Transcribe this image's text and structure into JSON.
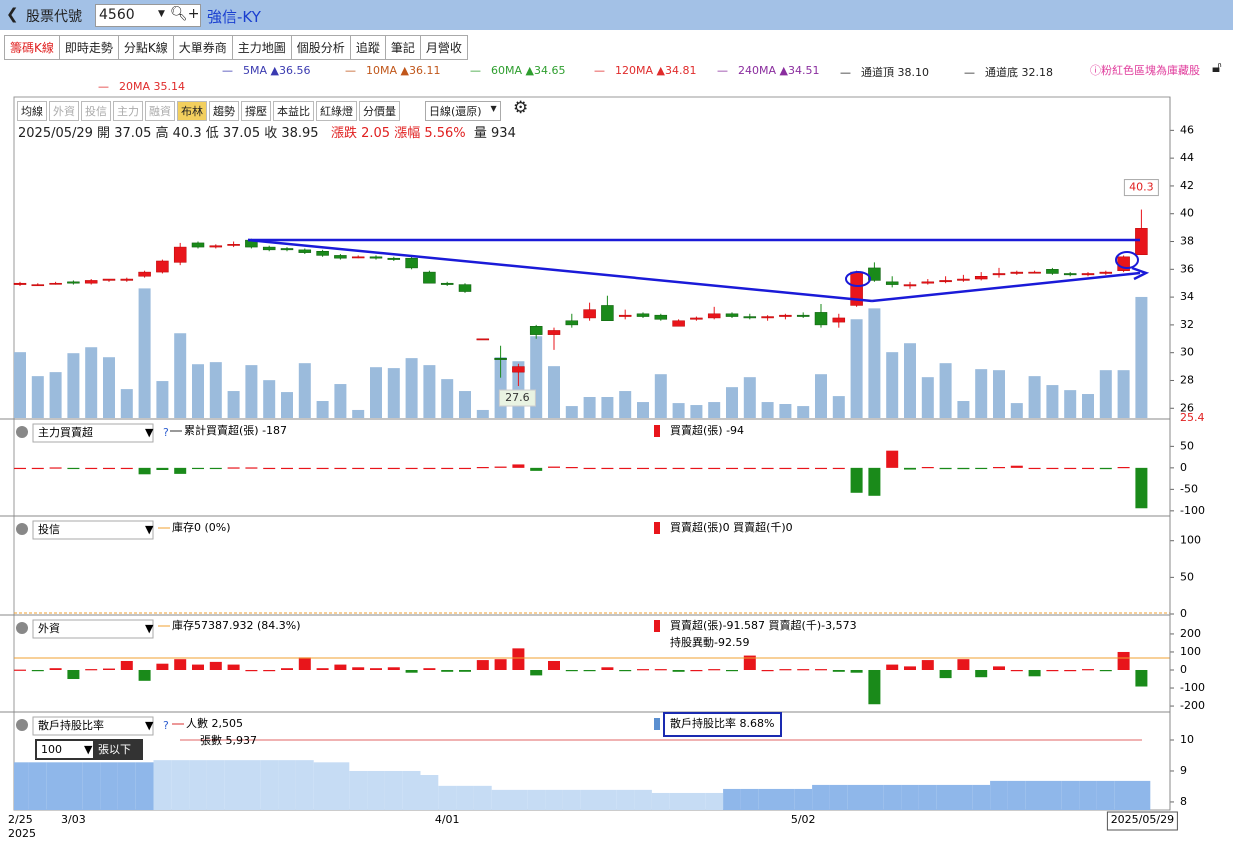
{
  "header": {
    "back_label": "股票代號",
    "code": "4560",
    "name": "強信-KY"
  },
  "tabs": [
    "籌碼K線",
    "即時走勢",
    "分點K線",
    "大單券商",
    "主力地圖",
    "個股分析",
    "追蹤",
    "筆記",
    "月營收"
  ],
  "ma_legend": [
    {
      "text": "5MA ▲36.56",
      "color": "#3a3ab0"
    },
    {
      "text": "10MA ▲36.11",
      "color": "#c0561a"
    },
    {
      "text": "60MA ▲34.65",
      "color": "#2e9e2e"
    },
    {
      "text": "120MA ▲34.81",
      "color": "#e02b2b"
    },
    {
      "text": "240MA ▲34.51",
      "color": "#8a2d9e"
    },
    {
      "text": "通道頂 38.10",
      "color": "#222222"
    },
    {
      "text": "通道底 32.18",
      "color": "#222222"
    },
    {
      "text": "20MA 35.14",
      "color": "#e02b2b"
    }
  ],
  "notice": "ⓘ粉紅色區塊為庫藏股",
  "toolbar": [
    "均線",
    "外資",
    "投信",
    "主力",
    "融資",
    "布林",
    "趨勢",
    "撐壓",
    "本益比",
    "紅綠燈",
    "分價量"
  ],
  "period": "日線(還原)",
  "info": {
    "black": "2025/05/29 開 37.05  高 40.3  低 37.05  收 38.95",
    "red": "漲跌 2.05  漲幅 5.56%",
    "volume": "量 934"
  },
  "main_chart": {
    "ylim": [
      25.3,
      48.4
    ],
    "yticks": [
      26,
      28,
      30,
      32,
      34,
      36,
      38,
      40,
      42,
      44,
      46
    ],
    "bottom_label": "25.4",
    "ohlc": [
      [
        34.9,
        35.1,
        34.8,
        35.0
      ],
      [
        34.9,
        35.0,
        34.8,
        34.9
      ],
      [
        35.0,
        35.1,
        34.9,
        35.0
      ],
      [
        35.1,
        35.2,
        34.9,
        35.0
      ],
      [
        35.0,
        35.3,
        34.9,
        35.2
      ],
      [
        35.2,
        35.3,
        35.1,
        35.3
      ],
      [
        35.2,
        35.4,
        35.1,
        35.3
      ],
      [
        35.5,
        35.9,
        35.4,
        35.8
      ],
      [
        35.8,
        36.7,
        35.7,
        36.6
      ],
      [
        36.5,
        37.9,
        36.3,
        37.6
      ],
      [
        37.9,
        38.0,
        37.5,
        37.6
      ],
      [
        37.6,
        37.8,
        37.5,
        37.7
      ],
      [
        37.8,
        38.0,
        37.6,
        37.8
      ],
      [
        38.1,
        38.2,
        37.5,
        37.6
      ],
      [
        37.6,
        37.7,
        37.3,
        37.4
      ],
      [
        37.5,
        37.6,
        37.3,
        37.4
      ],
      [
        37.4,
        37.5,
        37.1,
        37.2
      ],
      [
        37.3,
        37.4,
        36.9,
        37.0
      ],
      [
        37.0,
        37.1,
        36.7,
        36.8
      ],
      [
        36.9,
        37.0,
        36.8,
        36.9
      ],
      [
        36.9,
        37.0,
        36.7,
        36.8
      ],
      [
        36.8,
        36.9,
        36.6,
        36.7
      ],
      [
        36.8,
        37.0,
        36.0,
        36.1
      ],
      [
        35.8,
        35.9,
        35.0,
        35.0
      ],
      [
        35.0,
        35.1,
        34.8,
        34.9
      ],
      [
        34.9,
        35.0,
        34.3,
        34.4
      ],
      [
        31.0,
        31.0,
        31.0,
        31.0
      ],
      [
        29.6,
        30.5,
        28.2,
        29.5
      ],
      [
        28.6,
        29.2,
        27.6,
        29.0
      ],
      [
        31.9,
        32.0,
        31.0,
        31.3
      ],
      [
        31.3,
        31.8,
        30.2,
        31.6
      ],
      [
        32.3,
        32.8,
        31.8,
        32.0
      ],
      [
        32.5,
        33.6,
        32.3,
        33.1
      ],
      [
        33.4,
        34.1,
        32.3,
        32.3
      ],
      [
        32.6,
        33.1,
        32.4,
        32.7
      ],
      [
        32.8,
        32.9,
        32.5,
        32.6
      ],
      [
        32.7,
        32.8,
        32.3,
        32.4
      ],
      [
        31.9,
        32.4,
        31.9,
        32.3
      ],
      [
        32.4,
        32.6,
        32.3,
        32.5
      ],
      [
        32.5,
        33.3,
        32.4,
        32.8
      ],
      [
        32.8,
        32.9,
        32.5,
        32.6
      ],
      [
        32.6,
        32.8,
        32.4,
        32.5
      ],
      [
        32.5,
        32.7,
        32.3,
        32.6
      ],
      [
        32.6,
        32.8,
        32.4,
        32.7
      ],
      [
        32.7,
        32.9,
        32.5,
        32.6
      ],
      [
        32.9,
        33.5,
        31.8,
        32.0
      ],
      [
        32.2,
        32.8,
        31.8,
        32.5
      ],
      [
        33.4,
        35.9,
        33.3,
        35.8
      ],
      [
        36.1,
        36.5,
        35.1,
        35.2
      ],
      [
        35.1,
        35.5,
        34.7,
        34.9
      ],
      [
        34.8,
        35.1,
        34.6,
        34.9
      ],
      [
        35.0,
        35.3,
        34.9,
        35.1
      ],
      [
        35.1,
        35.5,
        35.0,
        35.2
      ],
      [
        35.2,
        35.6,
        35.1,
        35.3
      ],
      [
        35.3,
        35.8,
        35.2,
        35.5
      ],
      [
        35.6,
        36.1,
        35.4,
        35.7
      ],
      [
        35.7,
        35.9,
        35.6,
        35.8
      ],
      [
        35.8,
        35.9,
        35.7,
        35.8
      ],
      [
        36.0,
        36.1,
        35.6,
        35.7
      ],
      [
        35.7,
        35.8,
        35.5,
        35.6
      ],
      [
        35.6,
        35.8,
        35.5,
        35.7
      ],
      [
        35.7,
        35.9,
        35.6,
        35.8
      ],
      [
        35.9,
        37.0,
        35.8,
        36.9
      ],
      [
        37.05,
        40.3,
        37.05,
        38.95
      ]
    ],
    "volume": [
      508,
      323,
      354,
      500,
      546,
      469,
      223,
      1000,
      285,
      654,
      415,
      431,
      208,
      408,
      292,
      200,
      423,
      131,
      262,
      62,
      392,
      385,
      462,
      408,
      300,
      208,
      62,
      469,
      438,
      631,
      400,
      92,
      162,
      162,
      208,
      123,
      338,
      115,
      100,
      123,
      238,
      315,
      123,
      108,
      92,
      338,
      169,
      762,
      846,
      508,
      577,
      315,
      423,
      131,
      377,
      369,
      115,
      323,
      254,
      215,
      185,
      369,
      369,
      934
    ]
  },
  "x_labels": [
    "2/25",
    null,
    null,
    "3/03",
    null,
    null,
    null,
    null,
    null,
    null,
    null,
    null,
    null,
    null,
    null,
    null,
    null,
    null,
    null,
    null,
    null,
    null,
    null,
    null,
    "4/01",
    null,
    null,
    null,
    null,
    null,
    null,
    null,
    null,
    null,
    null,
    null,
    null,
    null,
    null,
    null,
    null,
    null,
    null,
    null,
    "5/02",
    null,
    null,
    null,
    null,
    null,
    null,
    null,
    null,
    null,
    null,
    null,
    null,
    null,
    null,
    null,
    null,
    null,
    null,
    "2025/05/29"
  ],
  "year_label": "2025",
  "panels": [
    {
      "title": "主力買賣超",
      "type": "bar",
      "legend": [
        "累計買賣超(張) -187",
        "買賣超(張) -94"
      ],
      "ylim": [
        -112,
        109
      ],
      "yticks": [
        -100,
        -50,
        0,
        50
      ],
      "values": [
        0,
        0,
        1,
        -1,
        0,
        0,
        0,
        -15,
        -5,
        -14,
        -1,
        -2,
        1,
        1,
        0,
        0,
        0,
        0,
        0,
        0,
        0,
        0,
        0,
        0,
        0,
        0,
        2,
        3,
        8,
        -7,
        3,
        2,
        0,
        0,
        0,
        0,
        0,
        0,
        0,
        0,
        0,
        0,
        0,
        0,
        0,
        0,
        0,
        -58,
        -65,
        40,
        -4,
        2,
        -3,
        -3,
        -2,
        2,
        5,
        0,
        0,
        0,
        0,
        -3,
        2,
        -94
      ]
    },
    {
      "title": "投信",
      "legend": [
        "庫存0 (0%)",
        "買賣超(張)0 買賣超(千)0"
      ],
      "ylim": [
        0,
        131
      ],
      "yticks": [
        0,
        50,
        100
      ]
    },
    {
      "title": "外資",
      "type": "bar",
      "legend": [
        "庫存57387.932 (84.3%)",
        "買賣超(張)-91.587 買賣超(千)-3,573",
        "持股異動-92.59"
      ],
      "ylim": [
        -233,
        294
      ],
      "yticks": [
        -200,
        -100,
        0,
        100,
        200
      ],
      "values": [
        2,
        -5,
        10,
        -50,
        5,
        8,
        50,
        -60,
        35,
        60,
        30,
        45,
        30,
        0,
        0,
        10,
        70,
        10,
        30,
        15,
        10,
        15,
        -15,
        10,
        -10,
        -10,
        55,
        60,
        120,
        -30,
        50,
        -5,
        -5,
        15,
        -5,
        5,
        5,
        -10,
        0,
        5,
        -5,
        80,
        0,
        5,
        5,
        5,
        -10,
        -15,
        -190,
        30,
        20,
        55,
        -45,
        60,
        -40,
        20,
        0,
        -35,
        0,
        0,
        5,
        -5,
        100,
        -91.587
      ]
    },
    {
      "title": "散戶持股比率",
      "type": "area",
      "legend": [
        "人數 2,505",
        "張數 5,937",
        "散戶持股比率 8.68%"
      ],
      "filter": [
        "100",
        "張以下"
      ],
      "ylim": [
        7.74,
        10.84
      ],
      "yticks": [
        8,
        9,
        10
      ],
      "values": [
        9.28,
        9.28,
        9.28,
        9.28,
        9.28,
        9.28,
        9.28,
        9.28,
        9.35,
        9.35,
        9.35,
        9.35,
        9.35,
        9.35,
        9.35,
        9.35,
        9.35,
        9.28,
        9.28,
        9.0,
        9.0,
        9.0,
        9.0,
        8.87,
        8.52,
        8.52,
        8.52,
        8.39,
        8.39,
        8.39,
        8.39,
        8.39,
        8.39,
        8.39,
        8.39,
        8.39,
        8.29,
        8.29,
        8.29,
        8.29,
        8.42,
        8.42,
        8.42,
        8.42,
        8.42,
        8.55,
        8.55,
        8.55,
        8.55,
        8.55,
        8.55,
        8.55,
        8.55,
        8.55,
        8.55,
        8.68,
        8.68,
        8.68,
        8.68,
        8.68,
        8.68,
        8.68,
        8.68,
        8.68
      ]
    }
  ]
}
